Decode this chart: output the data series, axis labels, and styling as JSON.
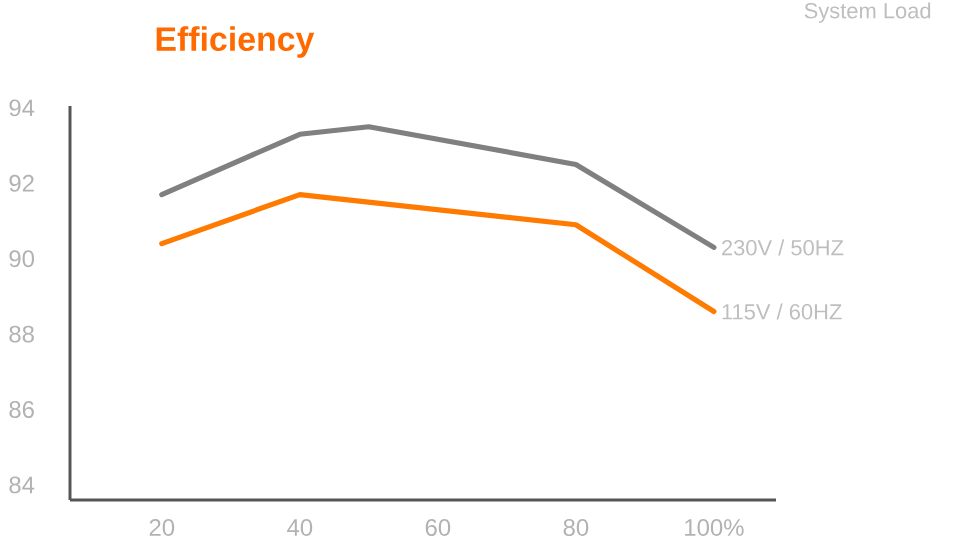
{
  "chart_data": {
    "type": "line",
    "title": "Efficiency",
    "xlabel": "System Load",
    "xlim": [
      6.7,
      109
    ],
    "xticks": [
      20,
      40,
      60,
      80,
      {
        "value": 100,
        "label": "100%"
      }
    ],
    "ylim": [
      83.6,
      94.05
    ],
    "yticks": [
      84,
      86,
      88,
      90,
      92,
      94
    ],
    "series": [
      {
        "name": "230V / 50HZ",
        "color": "#808080",
        "x": [
          20,
          40,
          50,
          80,
          100
        ],
        "values": [
          91.7,
          93.3,
          93.5,
          92.5,
          90.3
        ]
      },
      {
        "name": "115V / 60HZ",
        "color": "#ff7a00",
        "x": [
          20,
          40,
          80,
          100
        ],
        "values": [
          90.4,
          91.7,
          90.9,
          88.6
        ]
      }
    ]
  }
}
